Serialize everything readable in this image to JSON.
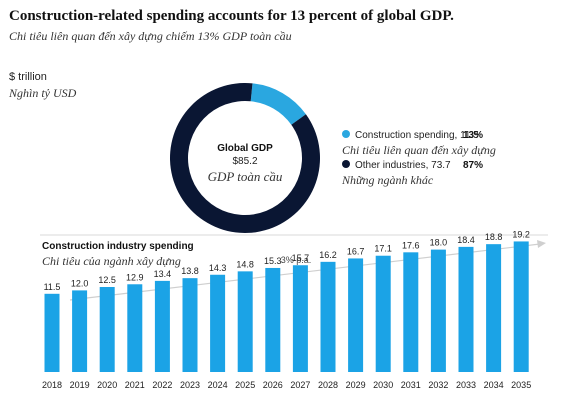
{
  "title": "Construction-related spending accounts for 13 percent of global GDP.",
  "subtitle_vi": "Chi tiêu liên quan đến xây dựng chiếm 13% GDP toàn cầu",
  "unit_en": "$ trillion",
  "unit_vi": "Nghìn tỷ USD",
  "colors": {
    "construction": "#2aa7e0",
    "other": "#0a1633",
    "bar": "#1ba3e6",
    "arrow": "#cfcfcf"
  },
  "chart_data": [
    {
      "type": "pie",
      "center_label": "Global GDP",
      "center_value": "$85.2",
      "center_label_vi": "GDP toàn cầu",
      "slices": [
        {
          "name": "Construction spending, 11.5",
          "value": 11.5,
          "percent": "13%",
          "name_vi": "Chi tiêu liên quan đến xây dựng"
        },
        {
          "name": "Other industries, 73.7",
          "value": 73.7,
          "percent": "87%",
          "name_vi": "Những ngành khác"
        }
      ],
      "legend_position": "right"
    },
    {
      "type": "bar",
      "title": "Construction industry spending",
      "subtitle_vi": "Chi tiêu của ngành xây dựng",
      "annotation": "3% p.a.",
      "categories": [
        "2018",
        "2019",
        "2020",
        "2021",
        "2022",
        "2023",
        "2024",
        "2025",
        "2026",
        "2027",
        "2028",
        "2029",
        "2030",
        "2031",
        "2032",
        "2033",
        "2034",
        "2035"
      ],
      "values": [
        11.5,
        12.0,
        12.5,
        12.9,
        13.4,
        13.8,
        14.3,
        14.8,
        15.3,
        15.7,
        16.2,
        16.7,
        17.1,
        17.6,
        18.0,
        18.4,
        18.8,
        19.2
      ],
      "labels": [
        "11.5",
        "12.0",
        "12.5",
        "12.9",
        "13.4",
        "13.8",
        "14.3",
        "14.8",
        "15.3",
        "15.7",
        "16.2",
        "16.7",
        "17.1",
        "17.6",
        "18.0",
        "18.4",
        "18.8",
        "19.2"
      ],
      "ylim": [
        0,
        20
      ],
      "grid": false
    }
  ]
}
